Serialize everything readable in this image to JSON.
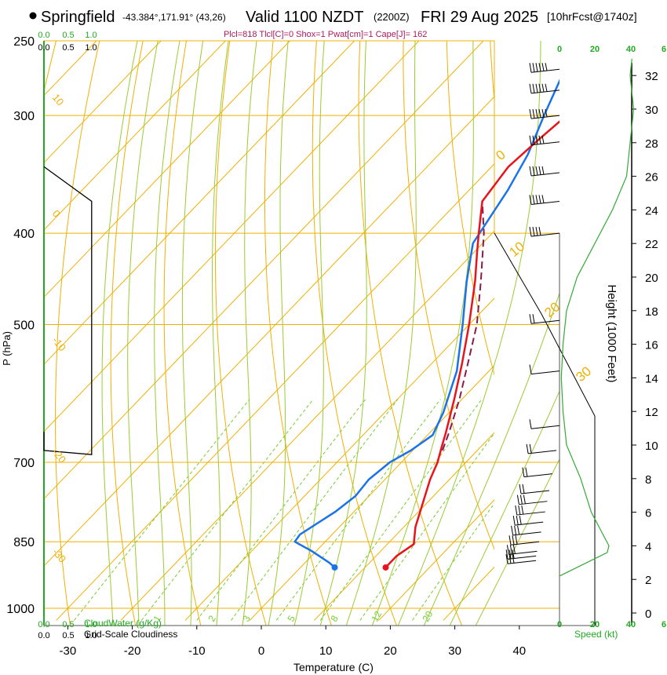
{
  "header": {
    "station": "Springfield",
    "coords": "-43.384°,171.91° (43,26)",
    "valid": "Valid 1100 NZDT",
    "utc": "(2200Z)",
    "date": "FRI 29 Aug 2025",
    "fcst": "[10hrFcst@1740z]",
    "indices": "Plcl=818 Tlcl[C]=0 Shox=1 Pwat[cm]=1 Cape[J]= 162"
  },
  "colors": {
    "isotherm": "#f0b000",
    "dryadiabat": "#f0b000",
    "moistadiabat": "#99cc33",
    "mixing": "#77cc33",
    "temperature": "#e8141c",
    "dewpoint": "#1a73e8",
    "parcel": "#8b1a4a",
    "green_text": "#22aa22",
    "indices_text": "#b0185a"
  },
  "chart_data": {
    "type": "skew-t",
    "title": "Springfield Valid 1100 NZDT FRI 29 Aug 2025",
    "xlabel": "Temperature (C)",
    "ylabel": "P (hPa)",
    "right_ylabel": "Height (1000 Feet)",
    "x_ticks": [
      "-30",
      "-20",
      "-10",
      "0",
      "10",
      "20",
      "30",
      "40"
    ],
    "x_tick_values": [
      -30,
      -20,
      -10,
      0,
      10,
      20,
      30,
      40
    ],
    "pressure_ticks": [
      "250",
      "300",
      "400",
      "500",
      "700",
      "850",
      "1000"
    ],
    "pressure_values": [
      250,
      300,
      400,
      500,
      700,
      850,
      1000
    ],
    "height_ticks": [
      "0",
      "2",
      "4",
      "6",
      "8",
      "10",
      "12",
      "14",
      "16",
      "18",
      "20",
      "22",
      "24",
      "26",
      "28",
      "30",
      "32"
    ],
    "speed_ticks": [
      "0",
      "20",
      "40",
      "6"
    ],
    "speed_label": "Speed (kt)",
    "cloudwater_ticks": [
      "0.0",
      "0.5",
      "1.0"
    ],
    "cloudwater_label": "CloudWater (g/Kg)",
    "cloudiness_ticks": [
      "0.0",
      "0.5",
      "1.0"
    ],
    "cloudiness_label": "Grid-Scale Cloudiness",
    "isotherm_labels": [
      "10",
      "0",
      "-10",
      "-20",
      "-30"
    ],
    "dry_adiabat_labels": [
      "0",
      "10",
      "20",
      "30"
    ],
    "mixing_ratio_labels": [
      "1",
      "2",
      "3",
      "5",
      "8",
      "12",
      "20"
    ],
    "temperature_profile": [
      {
        "p": 905,
        "t": 13.2
      },
      {
        "p": 880,
        "t": 13.2
      },
      {
        "p": 855,
        "t": 14.1
      },
      {
        "p": 820,
        "t": 11.8
      },
      {
        "p": 770,
        "t": 9.2
      },
      {
        "p": 730,
        "t": 7.0
      },
      {
        "p": 700,
        "t": 5.6
      },
      {
        "p": 675,
        "t": 4.0
      },
      {
        "p": 650,
        "t": 2.4
      },
      {
        "p": 600,
        "t": -1.2
      },
      {
        "p": 550,
        "t": -5.3
      },
      {
        "p": 500,
        "t": -10.0
      },
      {
        "p": 450,
        "t": -15.5
      },
      {
        "p": 420,
        "t": -19.4
      },
      {
        "p": 400,
        "t": -22.1
      },
      {
        "p": 370,
        "t": -26.3
      },
      {
        "p": 340,
        "t": -27.4
      },
      {
        "p": 320,
        "t": -26.8
      },
      {
        "p": 300,
        "t": -26.0
      },
      {
        "p": 280,
        "t": -24.5
      },
      {
        "p": 262,
        "t": -24.0
      }
    ],
    "dewpoint_profile": [
      {
        "p": 905,
        "t": 5.3
      },
      {
        "p": 895,
        "t": 3.8
      },
      {
        "p": 870,
        "t": -0.6
      },
      {
        "p": 850,
        "t": -4.7
      },
      {
        "p": 835,
        "t": -5.0
      },
      {
        "p": 790,
        "t": -2.9
      },
      {
        "p": 760,
        "t": -2.1
      },
      {
        "p": 730,
        "t": -2.5
      },
      {
        "p": 700,
        "t": -1.8
      },
      {
        "p": 680,
        "t": -0.3
      },
      {
        "p": 655,
        "t": 0.8
      },
      {
        "p": 620,
        "t": -0.9
      },
      {
        "p": 560,
        "t": -5.0
      },
      {
        "p": 500,
        "t": -11.0
      },
      {
        "p": 450,
        "t": -16.8
      },
      {
        "p": 410,
        "t": -21.5
      },
      {
        "p": 360,
        "t": -24.0
      },
      {
        "p": 330,
        "t": -26.2
      },
      {
        "p": 300,
        "t": -29.5
      },
      {
        "p": 270,
        "t": -32.9
      },
      {
        "p": 255,
        "t": -34.2
      }
    ],
    "parcel_profile": [
      {
        "p": 680,
        "t": 4.6
      },
      {
        "p": 650,
        "t": 2.9
      },
      {
        "p": 600,
        "t": -0.4
      },
      {
        "p": 550,
        "t": -4.4
      },
      {
        "p": 500,
        "t": -8.8
      },
      {
        "p": 450,
        "t": -14.6
      },
      {
        "p": 400,
        "t": -21.3
      },
      {
        "p": 370,
        "t": -26.3
      }
    ],
    "surface_markers": [
      {
        "name": "temperature",
        "p": 905,
        "t": 13.2
      },
      {
        "name": "dewpoint",
        "p": 905,
        "t": 5.3
      }
    ],
    "cloudiness_profile": [
      {
        "p": 650,
        "c": 0.0
      },
      {
        "p": 680,
        "c": 0.0
      },
      {
        "p": 687,
        "c": 0.95
      },
      {
        "p": 380,
        "c": 0.95
      },
      {
        "p": 370,
        "c": 0.95
      },
      {
        "p": 340,
        "c": 0.0
      }
    ],
    "wind_speed_profile": [
      {
        "h": 2.2,
        "s": 0
      },
      {
        "h": 3.6,
        "s": 27
      },
      {
        "h": 4.0,
        "s": 28
      },
      {
        "h": 4.6,
        "s": 25
      },
      {
        "h": 6.0,
        "s": 18
      },
      {
        "h": 8.0,
        "s": 12
      },
      {
        "h": 10.0,
        "s": 4
      },
      {
        "h": 12.0,
        "s": 2
      },
      {
        "h": 14.0,
        "s": 1
      },
      {
        "h": 16.0,
        "s": 2
      },
      {
        "h": 18.0,
        "s": 4
      },
      {
        "h": 20.0,
        "s": 10
      },
      {
        "h": 22.0,
        "s": 20
      },
      {
        "h": 24.0,
        "s": 30
      },
      {
        "h": 26.0,
        "s": 38
      },
      {
        "h": 28.0,
        "s": 40
      },
      {
        "h": 30.0,
        "s": 42
      },
      {
        "h": 32.0,
        "s": 40
      },
      {
        "h": 33.0,
        "s": 41
      }
    ],
    "wind_barbs": [
      {
        "p": 268,
        "sp": 60
      },
      {
        "p": 282,
        "sp": 55
      },
      {
        "p": 300,
        "sp": 55
      },
      {
        "p": 320,
        "sp": 50
      },
      {
        "p": 345,
        "sp": 50
      },
      {
        "p": 370,
        "sp": 45
      },
      {
        "p": 400,
        "sp": 40
      },
      {
        "p": 495,
        "sp": 15
      },
      {
        "p": 560,
        "sp": 10
      },
      {
        "p": 640,
        "sp": 10
      },
      {
        "p": 680,
        "sp": 15
      },
      {
        "p": 720,
        "sp": 20
      },
      {
        "p": 750,
        "sp": 20
      },
      {
        "p": 770,
        "sp": 25
      },
      {
        "p": 790,
        "sp": 25
      },
      {
        "p": 810,
        "sp": 25
      },
      {
        "p": 830,
        "sp": 30
      },
      {
        "p": 850,
        "sp": 30
      },
      {
        "p": 870,
        "sp": 30
      },
      {
        "p": 880,
        "sp": 30
      },
      {
        "p": 890,
        "sp": 25
      }
    ]
  }
}
